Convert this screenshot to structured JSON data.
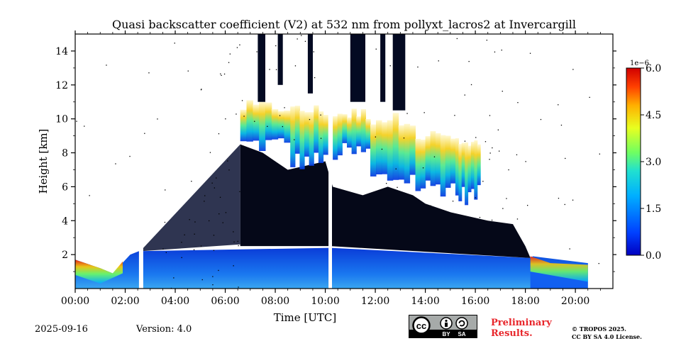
{
  "chart_data": {
    "type": "heatmap",
    "title": "Quasi backscatter coefficient (V2) at 532 nm from pollyxt_lacros2 at Invercargill",
    "xlabel": "Time [UTC]",
    "ylabel": "Height [km]",
    "xlim": [
      0,
      21.5
    ],
    "ylim": [
      0,
      15
    ],
    "x_ticks": [
      0,
      2,
      4,
      6,
      8,
      10,
      12,
      14,
      16,
      18,
      20
    ],
    "x_tick_labels": [
      "00:00",
      "02:00",
      "04:00",
      "06:00",
      "08:00",
      "10:00",
      "12:00",
      "14:00",
      "16:00",
      "18:00",
      "20:00"
    ],
    "y_ticks": [
      2,
      4,
      6,
      8,
      10,
      12,
      14
    ],
    "y_tick_labels": [
      "2",
      "4",
      "6",
      "8",
      "10",
      "12",
      "14"
    ],
    "colorbar": {
      "min": 0.0,
      "max": 6.0,
      "ticks": [
        0.0,
        1.5,
        3.0,
        4.5,
        6.0
      ],
      "tick_labels": [
        "0.0",
        "1.5",
        "3.0",
        "4.5",
        "6.0"
      ],
      "exponent_label": "1e−6",
      "colormap": "jet"
    },
    "data_gaps_hours": [
      [
        2.55,
        2.72
      ],
      [
        10.13,
        10.27
      ]
    ],
    "cloud_top_profile_km": [
      [
        0,
        1.5
      ],
      [
        1.5,
        1.0
      ],
      [
        2.0,
        1.8
      ],
      [
        2.55,
        1.9
      ],
      [
        4,
        2.2
      ],
      [
        6,
        2.6
      ],
      [
        6.6,
        8.5
      ],
      [
        7.5,
        8.0
      ],
      [
        8.5,
        7.0
      ],
      [
        10,
        7.5
      ],
      [
        10.3,
        6.0
      ],
      [
        11.5,
        5.5
      ],
      [
        12.5,
        6.0
      ],
      [
        13.5,
        5.5
      ],
      [
        14,
        5.0
      ],
      [
        15,
        4.5
      ],
      [
        16.5,
        4.0
      ],
      [
        17.5,
        3.8
      ],
      [
        18.0,
        2.5
      ],
      [
        18.2,
        1.8
      ],
      [
        20.5,
        1.0
      ]
    ],
    "cirrus_bands": [
      {
        "x_start": 6.6,
        "x_end": 8.6,
        "bottom_km": 8.5,
        "top_km": 10.7
      },
      {
        "x_start": 8.6,
        "x_end": 10.1,
        "bottom_km": 7.5,
        "top_km": 10.5
      },
      {
        "x_start": 10.3,
        "x_end": 11.8,
        "bottom_km": 8.0,
        "top_km": 10.3
      },
      {
        "x_start": 11.8,
        "x_end": 13.6,
        "bottom_km": 6.5,
        "top_km": 10.0
      },
      {
        "x_start": 13.6,
        "x_end": 15.2,
        "bottom_km": 6.0,
        "top_km": 9.0
      },
      {
        "x_start": 15.2,
        "x_end": 16.2,
        "bottom_km": 5.5,
        "top_km": 8.5
      }
    ],
    "boundary_layer_top_km": [
      [
        0,
        1.7
      ],
      [
        1.0,
        1.2
      ],
      [
        1.5,
        0.9
      ],
      [
        2.2,
        2.0
      ],
      [
        2.55,
        2.2
      ],
      [
        10.2,
        2.4
      ],
      [
        18.2,
        1.8
      ],
      [
        18.3,
        1.9
      ],
      [
        20.5,
        1.5
      ]
    ]
  },
  "footer": {
    "date": "2025-09-16",
    "version": "Version: 4.0",
    "preliminary_line1": "Preliminary",
    "preliminary_line2": "Results.",
    "copyright_line1": "© TROPOS 2025.",
    "copyright_line2": "CC BY SA 4.0 License.",
    "license_badge": {
      "cc": "cc",
      "by": "BY",
      "sa": "SA"
    }
  }
}
